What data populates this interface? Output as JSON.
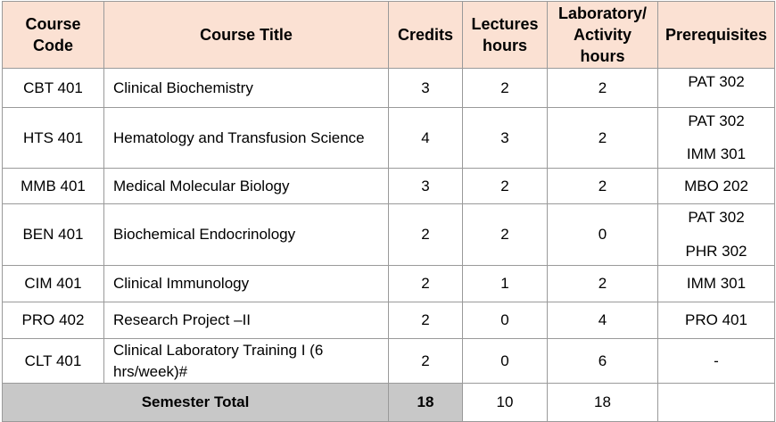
{
  "headers": {
    "code": "Course Code",
    "title": "Course Title",
    "credits": "Credits",
    "lectures": "Lectures hours",
    "lab": "Laboratory/ Activity hours",
    "prereq": "Prerequisites"
  },
  "rows": [
    {
      "code": "CBT 401",
      "title": "Clinical Biochemistry",
      "credits": "3",
      "lectures": "2",
      "lab": "2",
      "prereq": [
        "PAT 302"
      ]
    },
    {
      "code": "HTS 401",
      "title": "Hematology and Transfusion Science",
      "credits": "4",
      "lectures": "3",
      "lab": "2",
      "prereq": [
        "PAT 302",
        "IMM 301"
      ]
    },
    {
      "code": "MMB 401",
      "title": "Medical Molecular Biology",
      "credits": "3",
      "lectures": "2",
      "lab": "2",
      "prereq": [
        "MBO 202"
      ]
    },
    {
      "code": "BEN 401",
      "title": "Biochemical Endocrinology",
      "credits": "2",
      "lectures": "2",
      "lab": "0",
      "prereq": [
        "PAT 302",
        "PHR 302"
      ]
    },
    {
      "code": "CIM 401",
      "title": "Clinical Immunology",
      "credits": "2",
      "lectures": "1",
      "lab": "2",
      "prereq": [
        "IMM 301"
      ]
    },
    {
      "code": "PRO 402",
      "title": "Research Project –II",
      "credits": "2",
      "lectures": "0",
      "lab": "4",
      "prereq": [
        "PRO 401"
      ]
    },
    {
      "code": "CLT 401",
      "title": "Clinical Laboratory Training I (6 hrs/week)#",
      "credits": "2",
      "lectures": "0",
      "lab": "6",
      "prereq": [
        "-"
      ]
    }
  ],
  "total": {
    "label": "Semester Total",
    "credits": "18",
    "lectures": "10",
    "lab": "18"
  }
}
